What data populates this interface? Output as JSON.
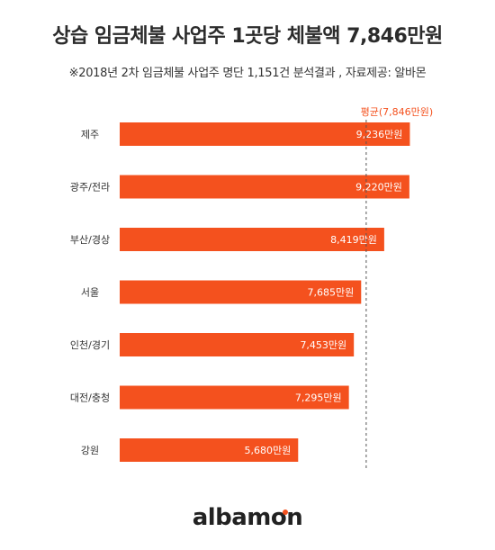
{
  "title": "상습 임금체불 사업주 1곳당 체불액 7,846만원",
  "subtitle": "※2018년 2차 임금체불 사업주 명단 1,151건 분석결과 ,  자료제공: 알바몬",
  "logo": {
    "prefix": "albam",
    "o": "o",
    "suffix": "n"
  },
  "colors": {
    "bar": "#f4511e",
    "average_line": "#555555",
    "average_label": "#f4511e"
  },
  "chart_data": {
    "type": "bar",
    "orientation": "horizontal",
    "categories": [
      "제주",
      "광주/전라",
      "부산/경상",
      "서울",
      "인천/경기",
      "대전/충청",
      "강원"
    ],
    "values": [
      9236,
      9220,
      8419,
      7685,
      7453,
      7295,
      5680
    ],
    "value_labels": [
      "9,236만원",
      "9,220만원",
      "8,419만원",
      "7,685만원",
      "7,453만원",
      "7,295만원",
      "5,680만원"
    ],
    "average": {
      "value": 7846,
      "label": "평균(7,846만원)"
    },
    "xlim": [
      0,
      11000
    ],
    "grid": false,
    "legend": "none"
  }
}
